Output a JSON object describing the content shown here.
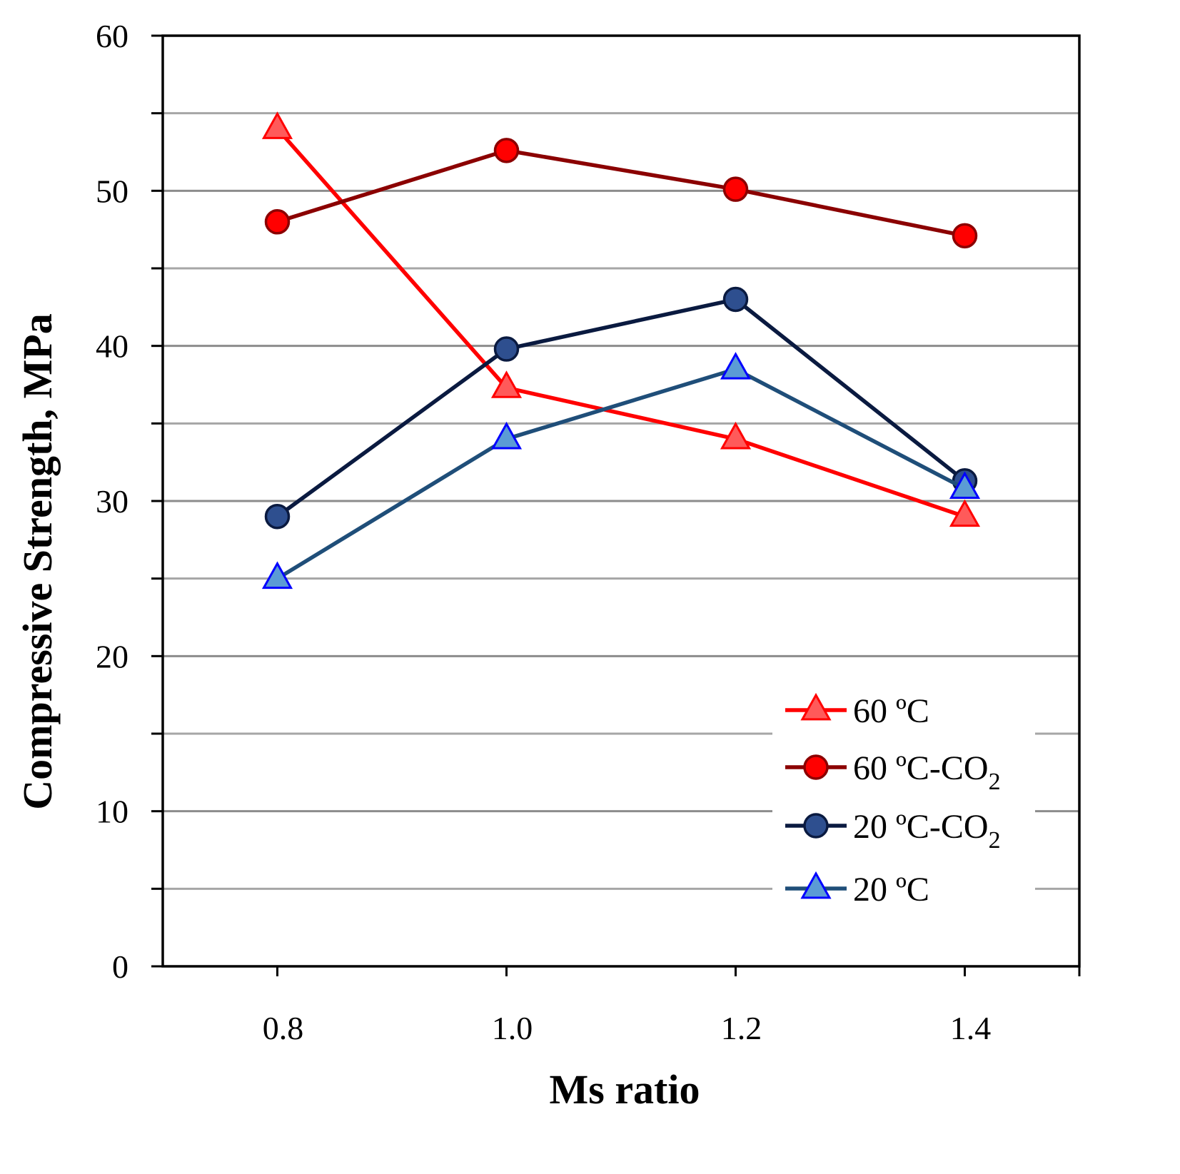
{
  "chart_data": {
    "type": "line",
    "title": "",
    "xlabel": "Ms ratio",
    "ylabel": "Compressive Strength, MPa",
    "x": [
      0.8,
      1.0,
      1.2,
      1.4
    ],
    "x_tick_labels": [
      "0.8",
      "1.0",
      "1.2",
      "1.4"
    ],
    "xlim": [
      0.7,
      1.5
    ],
    "ylim": [
      0,
      60
    ],
    "y_ticks": [
      0,
      10,
      20,
      30,
      40,
      50,
      60
    ],
    "y_tick_labels": [
      "0",
      "10",
      "20",
      "30",
      "40",
      "50",
      "60"
    ],
    "grid": "horizontal, every 5 MPa",
    "legend_position": "bottom-right",
    "series": [
      {
        "name": "60 ºC",
        "legend_label": {
          "main": "60 ºC",
          "sub": ""
        },
        "marker": "triangle",
        "line_color": "#ff0000",
        "marker_fill": "#ff5a5a",
        "marker_stroke": "#ff0000",
        "values": [
          54.0,
          37.3,
          34.0,
          29.0
        ]
      },
      {
        "name": "60 ºC-CO2",
        "legend_label": {
          "main": "60 ºC-CO",
          "sub": "2"
        },
        "marker": "circle",
        "line_color": "#8b0000",
        "marker_fill": "#ff0000",
        "marker_stroke": "#8b0000",
        "values": [
          48.0,
          52.6,
          50.1,
          47.1
        ]
      },
      {
        "name": "20 ºC-CO2",
        "legend_label": {
          "main": "20 ºC-CO",
          "sub": "2"
        },
        "marker": "circle",
        "line_color": "#0a1a40",
        "marker_fill": "#2e4f8f",
        "marker_stroke": "#0a1a40",
        "values": [
          29.0,
          39.8,
          43.0,
          31.3
        ]
      },
      {
        "name": "20 ºC",
        "legend_label": {
          "main": "20 ºC",
          "sub": ""
        },
        "marker": "triangle",
        "line_color": "#1f4e79",
        "marker_fill": "#5b9bd5",
        "marker_stroke": "#0000ff",
        "values": [
          25.0,
          34.0,
          38.5,
          30.8
        ]
      }
    ]
  }
}
